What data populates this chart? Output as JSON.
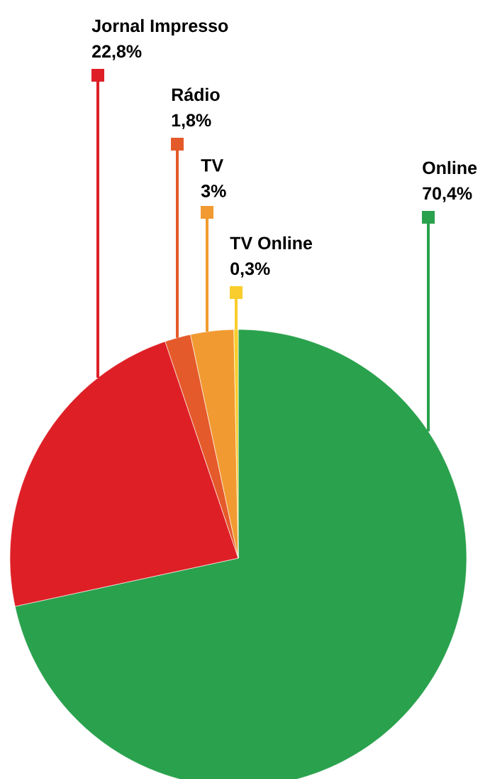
{
  "chart_data": {
    "type": "pie",
    "categories": [
      "Online",
      "Jornal Impresso",
      "Rádio",
      "TV",
      "TV Online"
    ],
    "values": [
      70.4,
      22.8,
      1.8,
      3,
      0.3
    ],
    "value_labels": [
      "70,4%",
      "22,8%",
      "1,8%",
      "3%",
      "0,3%"
    ],
    "colors": [
      "#2aa14d",
      "#de1f26",
      "#e55a2b",
      "#f19a31",
      "#f9cd2d"
    ]
  }
}
